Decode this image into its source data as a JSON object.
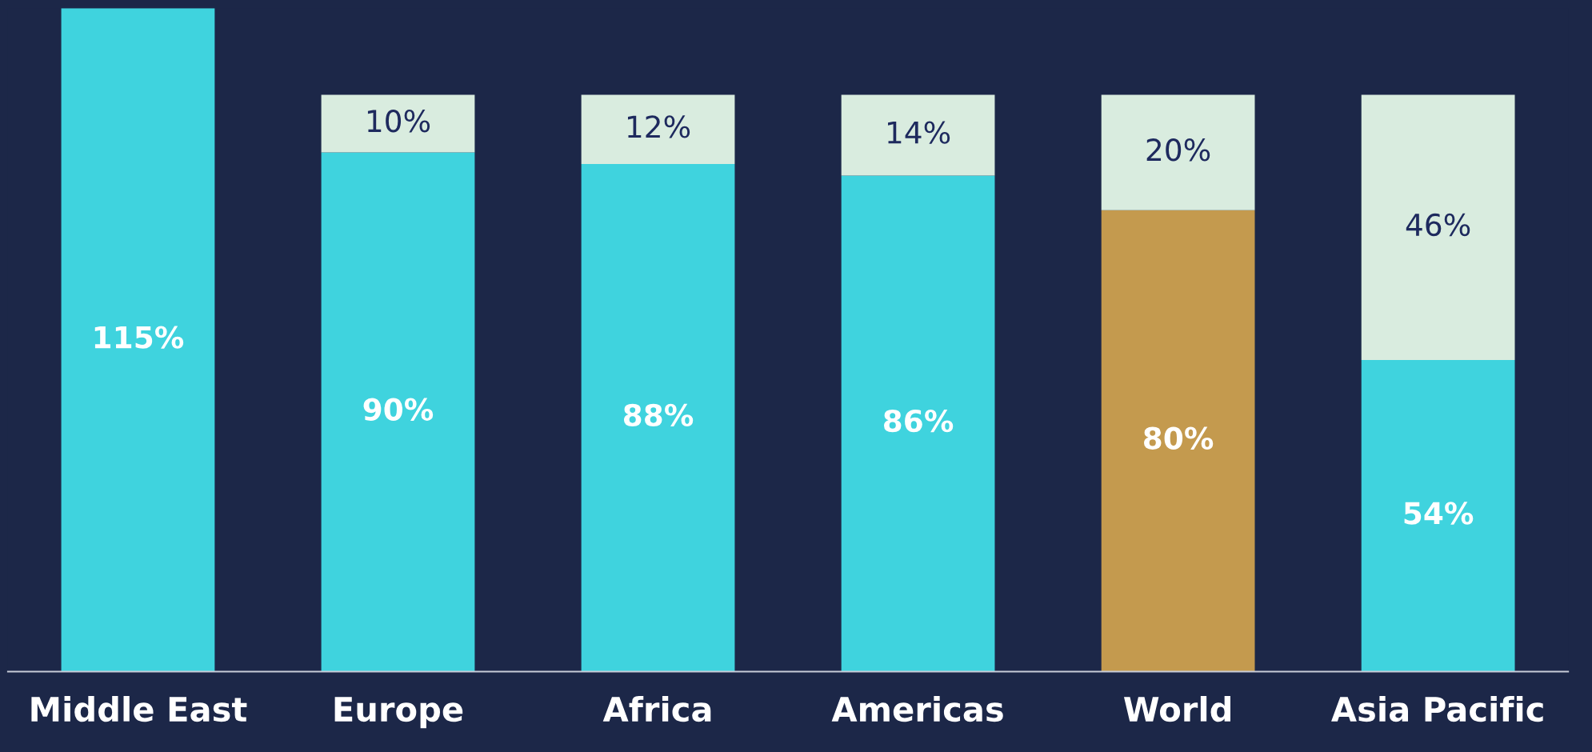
{
  "chart_data": {
    "type": "bar",
    "stacked": true,
    "data_labels": false,
    "grid": false,
    "legend": false,
    "tick_labels": "x",
    "categories": [
      "Middle East",
      "Europe",
      "Africa",
      "Americas",
      "World",
      "Asia Pacific"
    ],
    "series": [
      {
        "colors": [
          "#3fd3de",
          "#3fd3de",
          "#3fd3de",
          "#3fd3de",
          "#c49a4e",
          "#3fd3de"
        ],
        "values": [
          115,
          90,
          88,
          86,
          80,
          54
        ],
        "value_labels": [
          "115%",
          "90%",
          "88%",
          "86%",
          "80%",
          "54%"
        ]
      },
      {
        "color": "#d9ecdf",
        "values": [
          null,
          10,
          12,
          14,
          20,
          46
        ],
        "value_labels": [
          null,
          "10%",
          "12%",
          "14%",
          "20%",
          "46%"
        ]
      }
    ]
  }
}
